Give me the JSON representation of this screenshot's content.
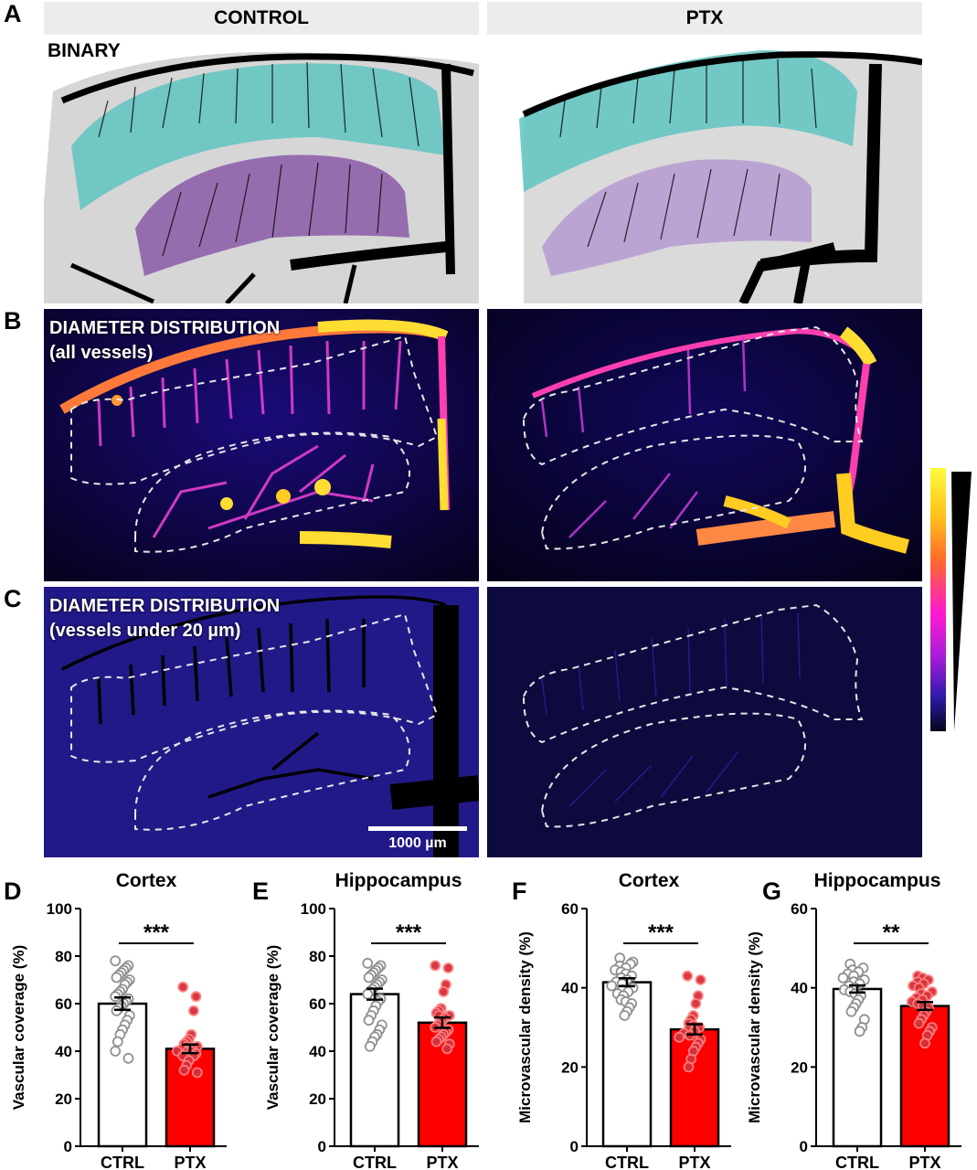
{
  "panels": {
    "A": {
      "letter": "A",
      "label": "BINARY"
    },
    "B": {
      "letter": "B",
      "line1": "DIAMETER DISTRIBUTION",
      "line2": "(all vessels)"
    },
    "C": {
      "letter": "C",
      "line1": "DIAMETER DISTRIBUTION",
      "line2": "(vessels under 20 µm)"
    }
  },
  "columns": {
    "control": "CONTROL",
    "ptx": "PTX"
  },
  "scale_bar": "1000 µm",
  "colors": {
    "ctrl_bar": "#ffffff",
    "ptx_bar": "#ff0000",
    "ctrl_dot": "#8c8c8c",
    "ptx_dot": "#d6303a",
    "cortex_roi": "#5fc4c0",
    "hippo_roi": "#8a5aa8"
  },
  "chart_data": [
    {
      "letter": "D",
      "type": "bar",
      "title": "Cortex",
      "ylabel": "Vascular coverage (%)",
      "categories": [
        "CTRL",
        "PTX"
      ],
      "values": [
        60,
        41
      ],
      "sem": [
        2.6,
        1.8
      ],
      "ylim": [
        0,
        100
      ],
      "yticks": [
        0,
        20,
        40,
        60,
        80,
        100
      ],
      "significance": "***",
      "points": [
        [
          78,
          76,
          75,
          74,
          73,
          72,
          71,
          70,
          69,
          68,
          66,
          65,
          64,
          63,
          62,
          61,
          60,
          59,
          58,
          57,
          55,
          53,
          51,
          49,
          47,
          44,
          40,
          37
        ],
        [
          67,
          63,
          57,
          47,
          45,
          44,
          43,
          42,
          42,
          41,
          41,
          40,
          40,
          40,
          39,
          38,
          38,
          36,
          34,
          32,
          31
        ]
      ]
    },
    {
      "letter": "E",
      "type": "bar",
      "title": "Hippocampus",
      "ylabel": "Vascular coverage (%)",
      "categories": [
        "CTRL",
        "PTX"
      ],
      "values": [
        64,
        52
      ],
      "sem": [
        2.3,
        2.2
      ],
      "ylim": [
        0,
        100
      ],
      "yticks": [
        0,
        20,
        40,
        60,
        80,
        100
      ],
      "significance": "***",
      "points": [
        [
          77,
          76,
          75,
          74,
          73,
          72,
          71,
          70,
          69,
          68,
          67,
          66,
          65,
          64,
          62,
          61,
          59,
          57,
          55,
          53,
          51,
          49,
          47,
          46,
          44,
          42
        ],
        [
          76,
          75,
          68,
          65,
          58,
          57,
          56,
          55,
          55,
          54,
          53,
          52,
          51,
          50,
          49,
          48,
          47,
          46,
          45,
          44,
          43,
          41
        ]
      ]
    },
    {
      "letter": "F",
      "type": "bar",
      "title": "Cortex",
      "ylabel": "Microvascular density (%)",
      "categories": [
        "CTRL",
        "PTX"
      ],
      "values": [
        41.4,
        29.5
      ],
      "sem": [
        1.0,
        1.3
      ],
      "ylim": [
        0,
        60
      ],
      "yticks": [
        0,
        20,
        40,
        60
      ],
      "significance": "***",
      "points": [
        [
          47.5,
          46.5,
          46,
          45.5,
          45,
          44.5,
          44,
          43.5,
          43,
          42.5,
          42,
          41.5,
          41,
          40.5,
          40,
          39.5,
          39,
          38.5,
          38,
          37,
          36.5,
          36,
          35,
          34,
          33
        ],
        [
          43,
          42,
          38,
          36,
          33,
          32,
          31,
          30.5,
          30,
          29.5,
          29,
          28.5,
          28,
          27.5,
          27,
          26,
          25,
          24,
          22,
          20
        ]
      ]
    },
    {
      "letter": "G",
      "type": "bar",
      "title": "Hippocampus",
      "ylabel": "Microvascular density (%)",
      "categories": [
        "CTRL",
        "PTX"
      ],
      "values": [
        39.7,
        35.4
      ],
      "sem": [
        0.9,
        1.0
      ],
      "ylim": [
        0,
        60
      ],
      "yticks": [
        0,
        20,
        40,
        60
      ],
      "significance": "**",
      "points": [
        [
          46,
          45,
          44.5,
          44,
          43.5,
          43,
          42.5,
          42,
          41.5,
          41,
          40.5,
          40,
          39.5,
          39,
          38.5,
          38,
          37,
          36,
          35,
          34,
          32,
          30,
          29
        ],
        [
          43,
          42.5,
          42,
          41.5,
          41,
          40.5,
          40,
          39,
          38.5,
          38,
          37.5,
          37,
          36.5,
          36,
          35.5,
          35,
          34,
          33,
          32,
          31,
          30,
          29,
          28,
          26
        ]
      ]
    }
  ]
}
